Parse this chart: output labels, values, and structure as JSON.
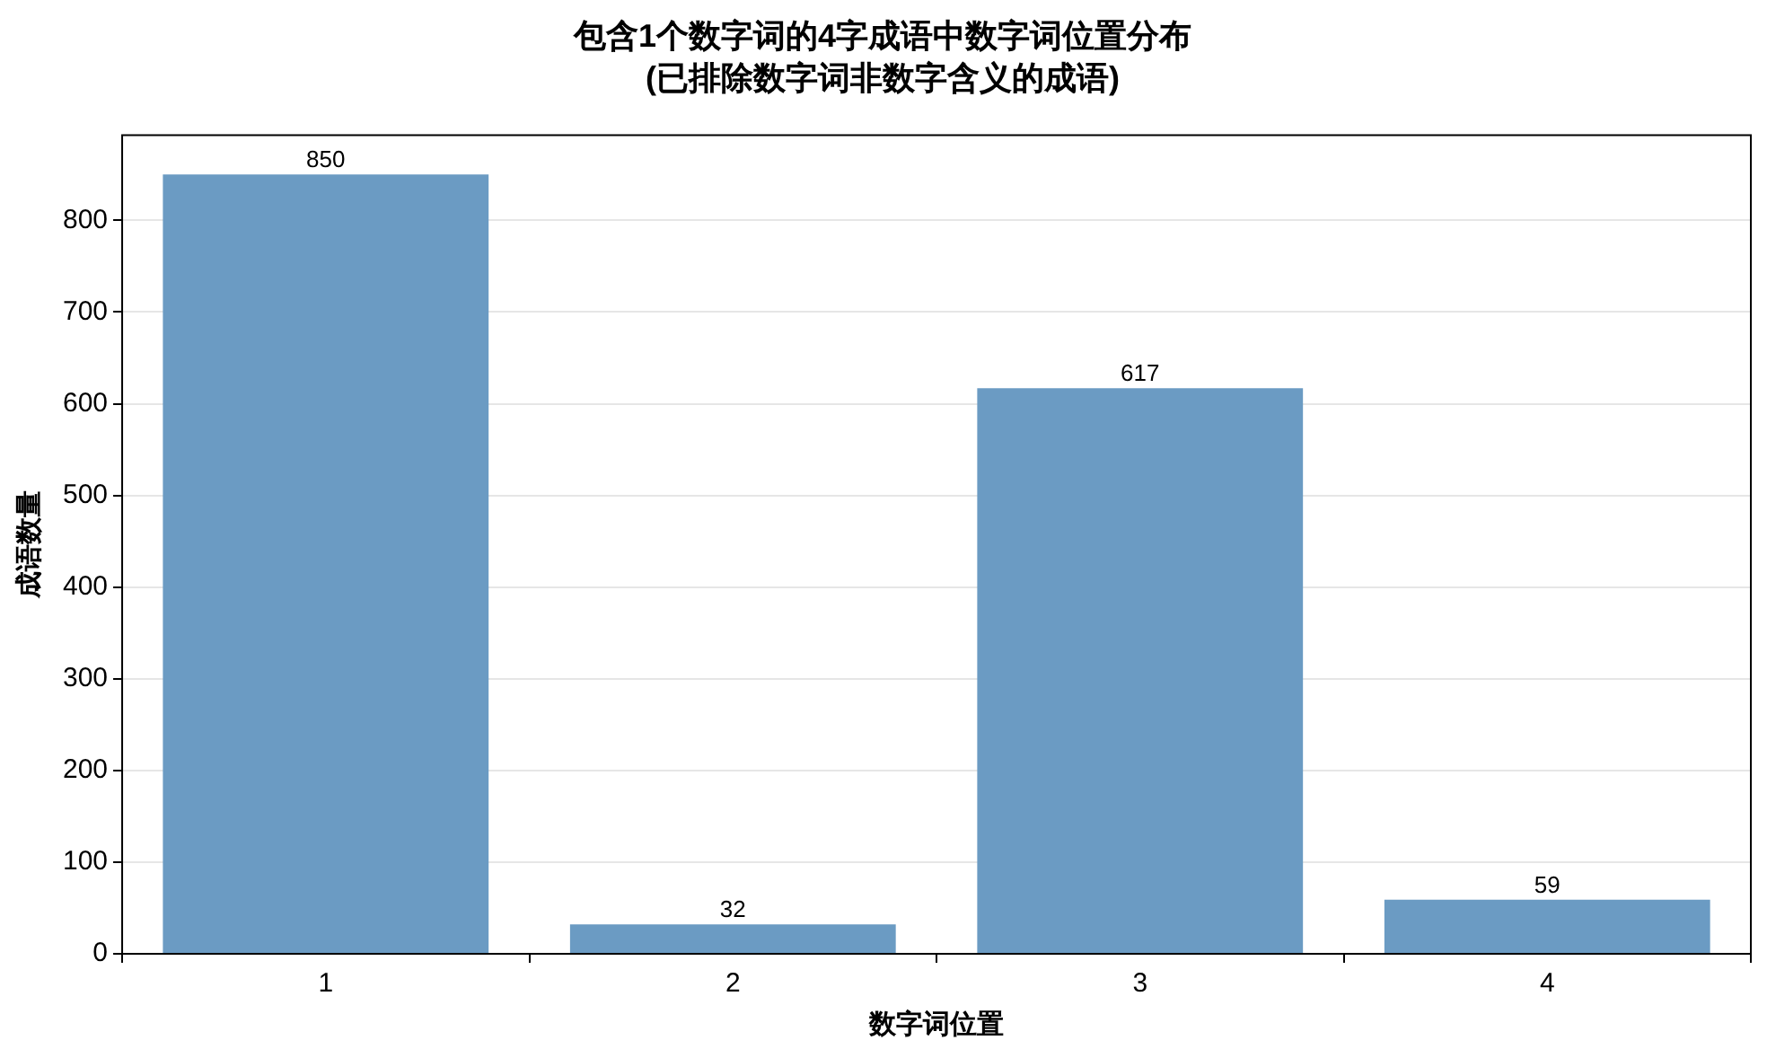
{
  "chart_data": {
    "type": "bar",
    "title": "包含1个数字词的4字成语中数字词位置分布",
    "subtitle": "(已排除数字词非数字含义的成语)",
    "xlabel": "数字词位置",
    "ylabel": "成语数量",
    "categories": [
      "1",
      "2",
      "3",
      "4"
    ],
    "values": [
      850,
      32,
      617,
      59
    ],
    "color": "#6b9bc3",
    "ylim": [
      0,
      893
    ],
    "yticks": [
      0,
      100,
      200,
      300,
      400,
      500,
      600,
      700,
      800
    ],
    "grid": "y",
    "data_labels": true
  }
}
